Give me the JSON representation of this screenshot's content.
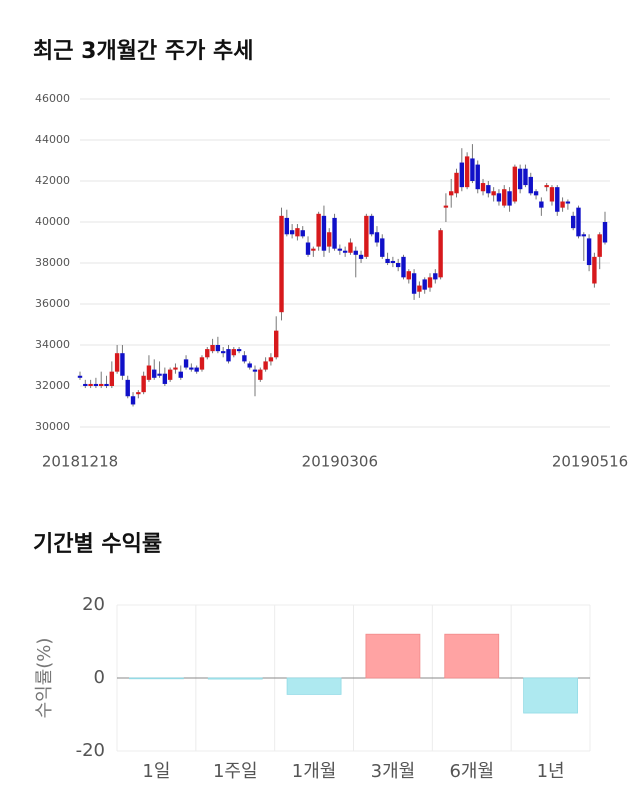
{
  "chart_data": [
    {
      "type": "candlestick",
      "title": "최근 3개월간 주가 추세",
      "categories": [
        "20181218",
        null,
        null,
        null,
        null,
        null,
        null,
        null,
        null,
        null,
        null,
        null,
        null,
        null,
        null,
        null,
        null,
        null,
        null,
        null,
        null,
        null,
        null,
        null,
        null,
        null,
        null,
        null,
        null,
        null,
        null,
        null,
        null,
        null,
        null,
        null,
        null,
        null,
        null,
        null,
        null,
        null,
        null,
        null,
        null,
        null,
        null,
        null,
        null,
        "20190306",
        null,
        null,
        null,
        null,
        null,
        null,
        null,
        null,
        null,
        null,
        null,
        null,
        null,
        null,
        null,
        null,
        null,
        null,
        null,
        null,
        null,
        null,
        null,
        null,
        null,
        null,
        null,
        null,
        null,
        null,
        null,
        null,
        null,
        null,
        null,
        null,
        null,
        null,
        null,
        null,
        null,
        null,
        null,
        null,
        null,
        null,
        null,
        null,
        null,
        "20190516"
      ],
      "ohlc": [
        [
          32500,
          32700,
          32300,
          32400
        ],
        [
          32100,
          32300,
          31900,
          32000
        ],
        [
          32000,
          32300,
          31900,
          32100
        ],
        [
          32100,
          32400,
          31900,
          32000
        ],
        [
          32000,
          32700,
          31900,
          32100
        ],
        [
          32100,
          32500,
          31900,
          32000
        ],
        [
          32000,
          33200,
          31900,
          32700
        ],
        [
          32700,
          34000,
          32600,
          33600
        ],
        [
          33600,
          34000,
          32300,
          32500
        ],
        [
          32300,
          32500,
          31400,
          31500
        ],
        [
          31500,
          31700,
          31000,
          31100
        ],
        [
          31600,
          31800,
          31400,
          31700
        ],
        [
          31700,
          32700,
          31600,
          32500
        ],
        [
          32300,
          33500,
          32200,
          33000
        ],
        [
          32800,
          33300,
          32300,
          32400
        ],
        [
          32600,
          33200,
          32400,
          32500
        ],
        [
          32600,
          32900,
          32000,
          32100
        ],
        [
          32300,
          32900,
          32200,
          32800
        ],
        [
          32800,
          33100,
          32600,
          32900
        ],
        [
          32700,
          33000,
          32300,
          32400
        ],
        [
          33300,
          33500,
          32800,
          32900
        ],
        [
          32900,
          33100,
          32700,
          32800
        ],
        [
          32900,
          33000,
          32600,
          32700
        ],
        [
          32800,
          33500,
          32700,
          33400
        ],
        [
          33400,
          33900,
          33300,
          33800
        ],
        [
          33700,
          34300,
          33600,
          34000
        ],
        [
          34000,
          34400,
          33600,
          33700
        ],
        [
          33700,
          33900,
          33400,
          33600
        ],
        [
          33800,
          34000,
          33100,
          33200
        ],
        [
          33500,
          33900,
          33400,
          33800
        ],
        [
          33800,
          33900,
          33600,
          33700
        ],
        [
          33500,
          33700,
          33100,
          33200
        ],
        [
          33100,
          33200,
          32800,
          32900
        ],
        [
          32800,
          33000,
          31500,
          32700
        ],
        [
          32300,
          32900,
          32200,
          32800
        ],
        [
          32800,
          33400,
          32700,
          33200
        ],
        [
          33200,
          33600,
          33000,
          33400
        ],
        [
          33400,
          35400,
          33300,
          34700
        ],
        [
          35600,
          40700,
          35200,
          40300
        ],
        [
          40200,
          40600,
          39300,
          39400
        ],
        [
          39600,
          39900,
          39200,
          39400
        ],
        [
          39300,
          39900,
          39100,
          39700
        ],
        [
          39600,
          39800,
          39200,
          39300
        ],
        [
          39000,
          39300,
          38300,
          38400
        ],
        [
          38600,
          38800,
          38300,
          38700
        ],
        [
          38800,
          40500,
          38600,
          40400
        ],
        [
          40300,
          40800,
          38300,
          38600
        ],
        [
          38800,
          39700,
          38500,
          39500
        ],
        [
          40200,
          40400,
          38600,
          38700
        ],
        [
          38700,
          38900,
          38400,
          38600
        ],
        [
          38600,
          38800,
          38300,
          38500
        ],
        [
          38500,
          39200,
          38400,
          39000
        ],
        [
          38600,
          38800,
          37300,
          38400
        ],
        [
          38400,
          38600,
          38000,
          38200
        ],
        [
          38300,
          40400,
          38200,
          40300
        ],
        [
          40300,
          40400,
          39300,
          39400
        ],
        [
          39500,
          39800,
          38800,
          39000
        ],
        [
          39200,
          39400,
          38200,
          38300
        ],
        [
          38200,
          38500,
          37900,
          38000
        ],
        [
          38100,
          38300,
          37800,
          38000
        ],
        [
          38000,
          38200,
          37600,
          37800
        ],
        [
          38300,
          38400,
          37200,
          37300
        ],
        [
          37200,
          37700,
          37000,
          37600
        ],
        [
          37500,
          37700,
          36200,
          36500
        ],
        [
          36600,
          37100,
          36300,
          36900
        ],
        [
          37200,
          37300,
          36500,
          36700
        ],
        [
          36800,
          37500,
          36600,
          37300
        ],
        [
          37500,
          37700,
          37000,
          37200
        ],
        [
          37300,
          39700,
          37200,
          39600
        ],
        [
          40700,
          41400,
          40000,
          40800
        ],
        [
          41300,
          42100,
          40700,
          41500
        ],
        [
          41400,
          42600,
          41200,
          42400
        ],
        [
          42900,
          43600,
          41500,
          41700
        ],
        [
          41700,
          43400,
          41600,
          43200
        ],
        [
          43100,
          43800,
          41900,
          42000
        ],
        [
          42800,
          43000,
          41400,
          41600
        ],
        [
          41500,
          42100,
          41300,
          41900
        ],
        [
          41800,
          42000,
          41200,
          41400
        ],
        [
          41300,
          41700,
          41000,
          41500
        ],
        [
          41400,
          41600,
          40800,
          41000
        ],
        [
          40800,
          41800,
          40700,
          41600
        ],
        [
          41500,
          41700,
          40500,
          40800
        ],
        [
          41000,
          42800,
          40900,
          42700
        ],
        [
          42600,
          42800,
          41400,
          41600
        ],
        [
          42600,
          42800,
          41700,
          41800
        ],
        [
          42200,
          42400,
          41300,
          41400
        ],
        [
          41500,
          41600,
          41100,
          41300
        ],
        [
          41000,
          41200,
          40300,
          40700
        ],
        [
          41700,
          41900,
          41500,
          41800
        ],
        [
          41000,
          41800,
          40800,
          41700
        ],
        [
          41700,
          41800,
          40300,
          40500
        ],
        [
          40700,
          41200,
          40500,
          41000
        ],
        [
          41000,
          41100,
          40600,
          40900
        ],
        [
          40300,
          40500,
          39600,
          39700
        ],
        [
          40700,
          40800,
          39200,
          39300
        ],
        [
          39400,
          39500,
          38100,
          39300
        ],
        [
          39200,
          39400,
          37600,
          37900
        ],
        [
          37000,
          38500,
          36800,
          38300
        ],
        [
          38300,
          39500,
          37700,
          39400
        ],
        [
          40000,
          40500,
          38900,
          39000
        ]
      ],
      "up_color": "#d7191c",
      "down_color": "#1010c8",
      "ylim": [
        30000,
        46000
      ],
      "yticks": [
        30000,
        32000,
        34000,
        36000,
        38000,
        40000,
        42000,
        44000,
        46000
      ],
      "grid": true
    },
    {
      "type": "bar",
      "title": "기간별 수익률",
      "ylabel": "수익률(%)",
      "categories": [
        "1일",
        "1주일",
        "1개월",
        "3개월",
        "6개월",
        "1년"
      ],
      "values": [
        0,
        -0.3,
        -4.5,
        12,
        12,
        -9.6
      ],
      "colors": [
        "#aee9f0",
        "#aee9f0",
        "#aee9f0",
        "#ffa3a3",
        "#ffa3a3",
        "#aee9f0"
      ],
      "ylim": [
        -20,
        20
      ],
      "yticks": [
        -20,
        0,
        20
      ],
      "grid": true
    }
  ]
}
